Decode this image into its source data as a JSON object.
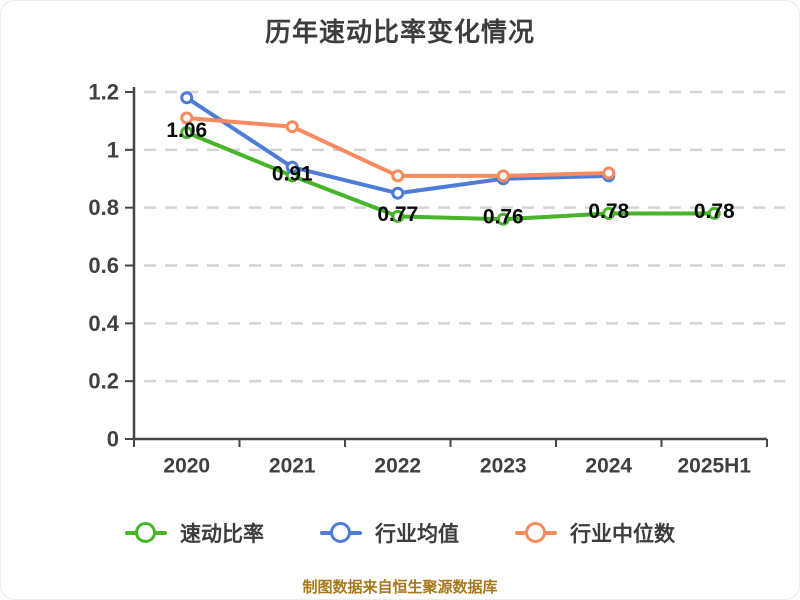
{
  "title": "历年速动比率变化情况",
  "source_note": "制图数据来自恒生聚源数据库",
  "colors": {
    "background": "#ffffff",
    "title_text": "#3d3d3d",
    "axis": "#464646",
    "tick_text": "#404040",
    "grid": "#d4d4d4",
    "data_label": "#0a0a0a",
    "source_text": "#a8791c"
  },
  "chart_data": {
    "type": "line",
    "title": "历年速动比率变化情况",
    "categories": [
      "2020",
      "2021",
      "2022",
      "2023",
      "2024",
      "2025H1"
    ],
    "series": [
      {
        "name": "速动比率",
        "color": "#47b42a",
        "values": [
          1.06,
          0.91,
          0.77,
          0.76,
          0.78,
          0.78
        ],
        "data_labels": [
          "1.06",
          "0.91",
          "0.77",
          "0.76",
          "0.78",
          "0.78"
        ]
      },
      {
        "name": "行业均值",
        "color": "#4d7dd7",
        "values": [
          1.18,
          0.94,
          0.85,
          0.9,
          0.91,
          null
        ],
        "data_labels": null
      },
      {
        "name": "行业中位数",
        "color": "#f78a5e",
        "values": [
          1.11,
          1.08,
          0.91,
          0.91,
          0.92,
          null
        ],
        "data_labels": null
      }
    ],
    "xlabel": "",
    "ylabel": "",
    "ylim": [
      0,
      1.2
    ],
    "y_ticks": [
      0,
      0.2,
      0.4,
      0.6,
      0.8,
      1.0,
      1.2
    ],
    "grid": "horizontal-dashed",
    "legend_position": "bottom",
    "marker_style": "circle-white-fill"
  }
}
